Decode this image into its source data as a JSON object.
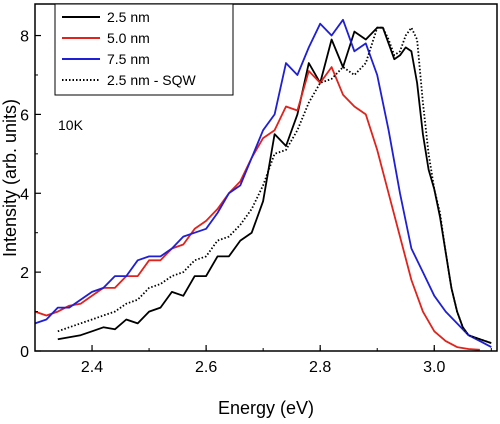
{
  "chart_data": {
    "type": "line",
    "title": "",
    "xlabel": "Energy (eV)",
    "ylabel": "Intensity (arb. units)",
    "xlim": [
      2.3,
      3.11
    ],
    "ylim": [
      0,
      8.8
    ],
    "xticks": [
      2.4,
      2.6,
      2.8,
      3.0
    ],
    "xtick_labels": [
      "2.4",
      "2.6",
      "2.8",
      "3.0"
    ],
    "yticks": [
      0,
      2,
      4,
      6,
      8
    ],
    "ytick_labels": [
      "0",
      "2",
      "4",
      "6",
      "8"
    ],
    "grid": false,
    "legend_position": "top-left",
    "annotation": "10K",
    "series": [
      {
        "name": "2.5 nm",
        "color": "#000000",
        "style": "solid",
        "x": [
          2.34,
          2.36,
          2.38,
          2.4,
          2.42,
          2.44,
          2.46,
          2.48,
          2.5,
          2.52,
          2.54,
          2.56,
          2.58,
          2.6,
          2.62,
          2.64,
          2.66,
          2.68,
          2.7,
          2.72,
          2.74,
          2.76,
          2.78,
          2.8,
          2.82,
          2.84,
          2.86,
          2.88,
          2.9,
          2.91,
          2.92,
          2.93,
          2.94,
          2.95,
          2.96,
          2.97,
          2.98,
          2.99,
          3.0,
          3.01,
          3.02,
          3.03,
          3.04,
          3.05,
          3.06,
          3.08,
          3.1
        ],
        "y": [
          0.3,
          0.35,
          0.4,
          0.5,
          0.6,
          0.55,
          0.8,
          0.7,
          1.0,
          1.1,
          1.5,
          1.4,
          1.9,
          1.9,
          2.4,
          2.4,
          2.8,
          3.0,
          3.8,
          5.5,
          5.2,
          6.0,
          7.3,
          6.8,
          7.9,
          7.2,
          8.1,
          7.9,
          8.2,
          8.2,
          7.8,
          7.4,
          7.5,
          7.7,
          7.6,
          6.8,
          5.5,
          4.6,
          4.1,
          3.4,
          2.5,
          1.6,
          1.0,
          0.6,
          0.4,
          0.3,
          0.2
        ]
      },
      {
        "name": "5.0 nm",
        "color": "#e0231c",
        "style": "solid",
        "x": [
          2.3,
          2.32,
          2.34,
          2.36,
          2.38,
          2.4,
          2.42,
          2.44,
          2.46,
          2.48,
          2.5,
          2.52,
          2.54,
          2.56,
          2.58,
          2.6,
          2.62,
          2.64,
          2.66,
          2.68,
          2.7,
          2.72,
          2.74,
          2.76,
          2.78,
          2.8,
          2.82,
          2.84,
          2.86,
          2.88,
          2.9,
          2.92,
          2.94,
          2.96,
          2.98,
          3.0,
          3.02,
          3.04,
          3.06,
          3.08
        ],
        "y": [
          1.0,
          0.9,
          1.0,
          1.15,
          1.2,
          1.4,
          1.6,
          1.6,
          1.9,
          1.9,
          2.3,
          2.3,
          2.6,
          2.7,
          3.1,
          3.3,
          3.6,
          4.0,
          4.3,
          4.9,
          5.4,
          5.6,
          6.2,
          6.1,
          7.1,
          6.8,
          7.2,
          6.5,
          6.2,
          6.0,
          5.1,
          4.0,
          2.9,
          1.8,
          1.0,
          0.5,
          0.25,
          0.1,
          0.05,
          0.03
        ]
      },
      {
        "name": "7.5 nm",
        "color": "#1f1fd6",
        "style": "solid",
        "x": [
          2.3,
          2.32,
          2.34,
          2.36,
          2.38,
          2.4,
          2.42,
          2.44,
          2.46,
          2.48,
          2.5,
          2.52,
          2.54,
          2.56,
          2.58,
          2.6,
          2.62,
          2.64,
          2.66,
          2.68,
          2.7,
          2.72,
          2.74,
          2.76,
          2.78,
          2.8,
          2.82,
          2.84,
          2.86,
          2.88,
          2.9,
          2.92,
          2.94,
          2.96,
          2.98,
          3.0,
          3.02,
          3.04,
          3.06,
          3.08,
          3.1
        ],
        "y": [
          0.7,
          0.8,
          1.1,
          1.1,
          1.3,
          1.5,
          1.6,
          1.9,
          1.9,
          2.3,
          2.4,
          2.4,
          2.6,
          2.9,
          3.0,
          3.1,
          3.5,
          4.0,
          4.2,
          4.9,
          5.6,
          6.0,
          7.3,
          7.0,
          7.7,
          8.3,
          8.0,
          8.4,
          7.6,
          7.8,
          7.0,
          5.6,
          4.0,
          2.6,
          2.0,
          1.4,
          1.0,
          0.7,
          0.4,
          0.25,
          0.1
        ]
      },
      {
        "name": "2.5 nm - SQW",
        "color": "#000000",
        "style": "dotted",
        "x": [
          2.34,
          2.36,
          2.38,
          2.4,
          2.42,
          2.44,
          2.46,
          2.48,
          2.5,
          2.52,
          2.54,
          2.56,
          2.58,
          2.6,
          2.62,
          2.64,
          2.66,
          2.68,
          2.7,
          2.72,
          2.74,
          2.76,
          2.78,
          2.8,
          2.82,
          2.84,
          2.86,
          2.88,
          2.9,
          2.91,
          2.92,
          2.93,
          2.94,
          2.95,
          2.96,
          2.97,
          2.98,
          2.99,
          3.0,
          3.01,
          3.02,
          3.03,
          3.04,
          3.05,
          3.06,
          3.08,
          3.1
        ],
        "y": [
          0.5,
          0.6,
          0.7,
          0.8,
          0.9,
          1.0,
          1.2,
          1.3,
          1.6,
          1.7,
          1.9,
          2.0,
          2.3,
          2.4,
          2.8,
          2.9,
          3.2,
          3.6,
          4.2,
          5.0,
          5.1,
          5.6,
          6.3,
          6.8,
          6.9,
          7.2,
          7.0,
          7.3,
          8.2,
          8.2,
          7.9,
          7.5,
          7.6,
          8.0,
          8.2,
          7.9,
          6.3,
          5.0,
          4.1,
          3.5,
          2.5,
          1.6,
          1.0,
          0.6,
          0.4,
          0.3,
          0.2
        ]
      }
    ]
  }
}
